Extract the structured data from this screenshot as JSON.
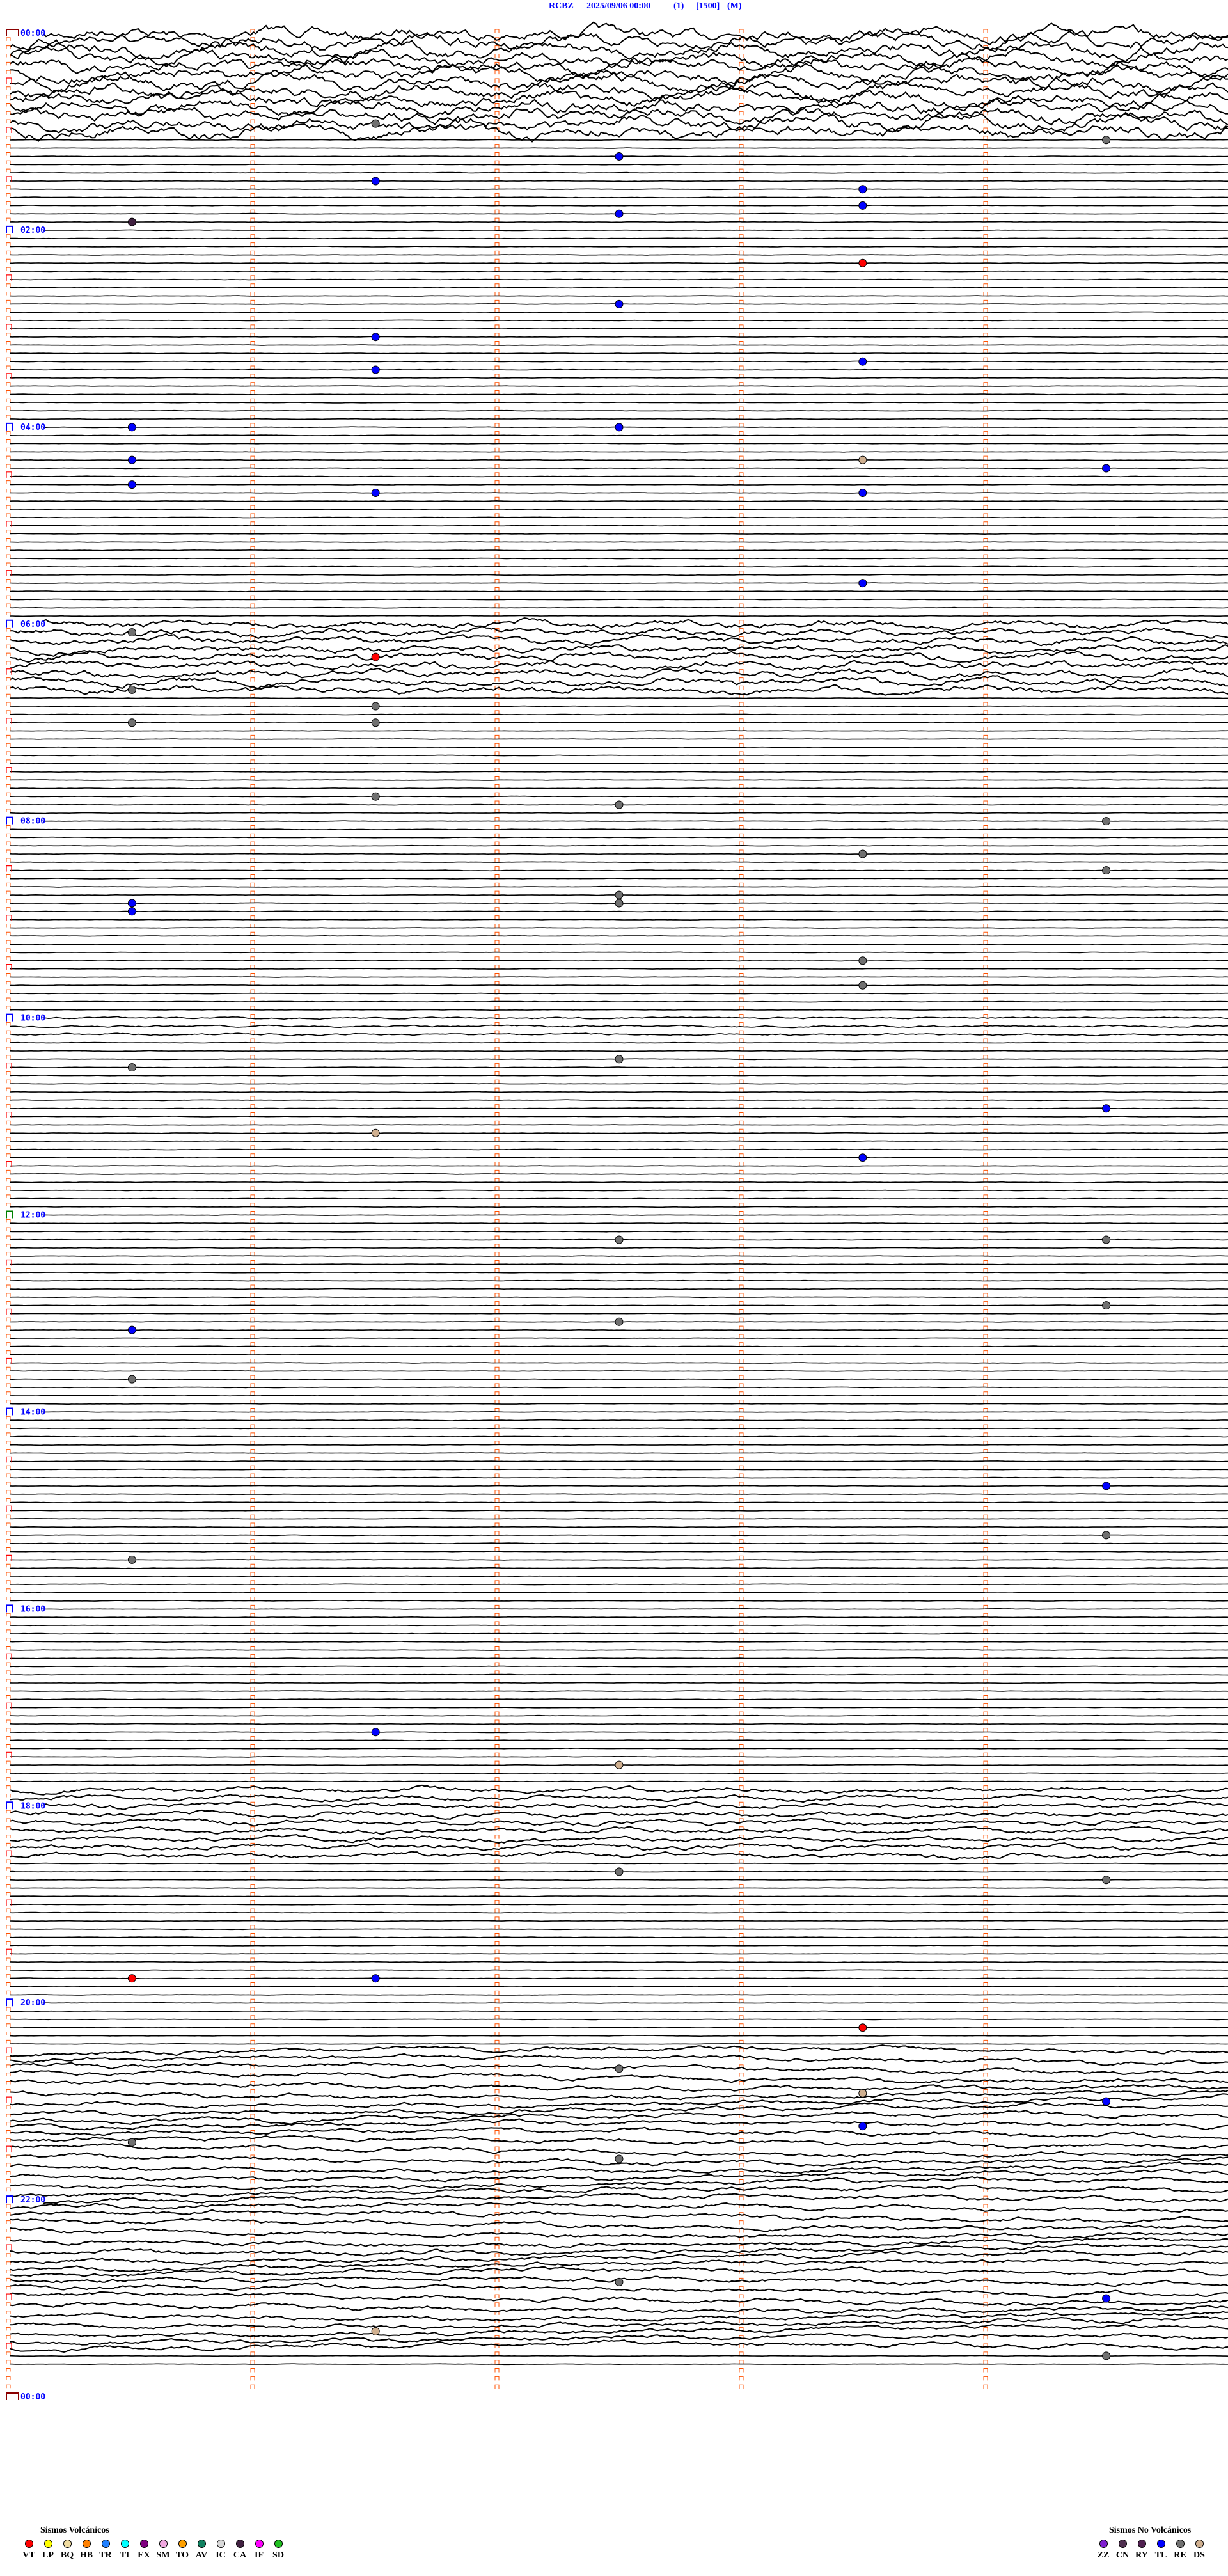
{
  "header": {
    "station": "RCBZ",
    "datetime": "2025/09/06 00:00",
    "channel": "(1)",
    "scale": "[1500]",
    "mode": "(M)"
  },
  "chart_data": {
    "type": "helicorder",
    "minutes_per_line": 5,
    "time_range": [
      "00:00",
      "24:00"
    ],
    "hour_labels": [
      "00:00",
      "02:00",
      "04:00",
      "06:00",
      "08:00",
      "10:00",
      "12:00",
      "14:00",
      "16:00",
      "18:00",
      "20:00",
      "22:00",
      "00:00"
    ],
    "events": [
      {
        "type": "RE",
        "time": "00:56"
      },
      {
        "type": "RE",
        "time": "01:09"
      },
      {
        "type": "TL",
        "time": "01:17"
      },
      {
        "type": "DS",
        "time": "01:31"
      },
      {
        "type": "TL",
        "time": "01:31"
      },
      {
        "type": "TL",
        "time": "01:38"
      },
      {
        "type": "TL",
        "time": "01:48"
      },
      {
        "type": "TL",
        "time": "01:52"
      },
      {
        "type": "CA",
        "time": "01:55"
      },
      {
        "type": "VT",
        "time": "02:23"
      },
      {
        "type": "TL",
        "time": "02:47"
      },
      {
        "type": "TL",
        "time": "03:06"
      },
      {
        "type": "TL",
        "time": "03:26"
      },
      {
        "type": "TL",
        "time": "03:23"
      },
      {
        "type": "TL",
        "time": "04:00"
      },
      {
        "type": "TL",
        "time": "04:02"
      },
      {
        "type": "TL",
        "time": "04:20"
      },
      {
        "type": "DS",
        "time": "04:23"
      },
      {
        "type": "TL",
        "time": "04:29"
      },
      {
        "type": "TL",
        "time": "04:35"
      },
      {
        "type": "TL",
        "time": "04:41"
      },
      {
        "type": "TL",
        "time": "04:43"
      },
      {
        "type": "TL",
        "time": "05:38"
      },
      {
        "type": "RE",
        "time": "06:05"
      },
      {
        "type": "VT",
        "time": "06:21"
      },
      {
        "type": "RE",
        "time": "06:40"
      },
      {
        "type": "RE",
        "time": "06:51"
      },
      {
        "type": "RE",
        "time": "07:01"
      },
      {
        "type": "RE",
        "time": "07:00"
      },
      {
        "type": "RE",
        "time": "07:46"
      },
      {
        "type": "RE",
        "time": "07:52"
      },
      {
        "type": "RE",
        "time": "08:04"
      },
      {
        "type": "RE",
        "time": "08:23"
      },
      {
        "type": "RE",
        "time": "08:34"
      },
      {
        "type": "RE",
        "time": "08:47"
      },
      {
        "type": "RE",
        "time": "08:52"
      },
      {
        "type": "TL",
        "time": "08:50"
      },
      {
        "type": "TL",
        "time": "08:55"
      },
      {
        "type": "RE",
        "time": "09:28"
      },
      {
        "type": "RE",
        "time": "09:43"
      },
      {
        "type": "RE",
        "time": "10:30"
      },
      {
        "type": "RE",
        "time": "10:27"
      },
      {
        "type": "TL",
        "time": "10:59"
      },
      {
        "type": "DS",
        "time": "11:11"
      },
      {
        "type": "TL",
        "time": "11:28"
      },
      {
        "type": "RE",
        "time": "12:17"
      },
      {
        "type": "RE",
        "time": "12:19"
      },
      {
        "type": "RE",
        "time": "12:59"
      },
      {
        "type": "RE",
        "time": "13:07"
      },
      {
        "type": "TL",
        "time": "13:10"
      },
      {
        "type": "RE",
        "time": "13:40"
      },
      {
        "type": "TL",
        "time": "14:49"
      },
      {
        "type": "RE",
        "time": "15:19"
      },
      {
        "type": "RE",
        "time": "15:30"
      },
      {
        "type": "TL",
        "time": "17:16"
      },
      {
        "type": "DS",
        "time": "17:37"
      },
      {
        "type": "RE",
        "time": "18:42"
      },
      {
        "type": "RE",
        "time": "18:49"
      },
      {
        "type": "VT",
        "time": "19:45"
      },
      {
        "type": "TL",
        "time": "19:46"
      },
      {
        "type": "VT",
        "time": "20:18"
      },
      {
        "type": "RE",
        "time": "20:42"
      },
      {
        "type": "DS",
        "time": "20:58"
      },
      {
        "type": "TL",
        "time": "21:04"
      },
      {
        "type": "TL",
        "time": "21:18"
      },
      {
        "type": "RE",
        "time": "21:25"
      },
      {
        "type": "RE",
        "time": "21:37"
      },
      {
        "type": "RE",
        "time": "22:52"
      },
      {
        "type": "TL",
        "time": "23:04"
      },
      {
        "type": "DS",
        "time": "23:21"
      },
      {
        "type": "RE",
        "time": "23:39"
      }
    ]
  },
  "legend_volcanic": {
    "title": "Sismos Volcánicos",
    "items": [
      {
        "code": "VT",
        "color": "#ff0000"
      },
      {
        "code": "LP",
        "color": "#ffff00"
      },
      {
        "code": "BQ",
        "color": "#f0dca0"
      },
      {
        "code": "HB",
        "color": "#ff8000"
      },
      {
        "code": "TR",
        "color": "#2080ff"
      },
      {
        "code": "TI",
        "color": "#00ffff"
      },
      {
        "code": "EX",
        "color": "#800080"
      },
      {
        "code": "SM",
        "color": "#f0a8e0"
      },
      {
        "code": "TO",
        "color": "#ffa000"
      },
      {
        "code": "AV",
        "color": "#108060"
      },
      {
        "code": "IC",
        "color": "#d8d8d8"
      },
      {
        "code": "CA",
        "color": "#402040"
      },
      {
        "code": "IF",
        "color": "#ff00ff"
      },
      {
        "code": "SD",
        "color": "#20c020"
      }
    ]
  },
  "legend_non_volcanic": {
    "title": "Sismos No Volcánicos",
    "items": [
      {
        "code": "ZZ",
        "color": "#8020d0"
      },
      {
        "code": "CN",
        "color": "#503050"
      },
      {
        "code": "RY",
        "color": "#502050"
      },
      {
        "code": "TL",
        "color": "#0000ff"
      },
      {
        "code": "RE",
        "color": "#707070"
      },
      {
        "code": "DS",
        "color": "#d0b090"
      }
    ]
  }
}
